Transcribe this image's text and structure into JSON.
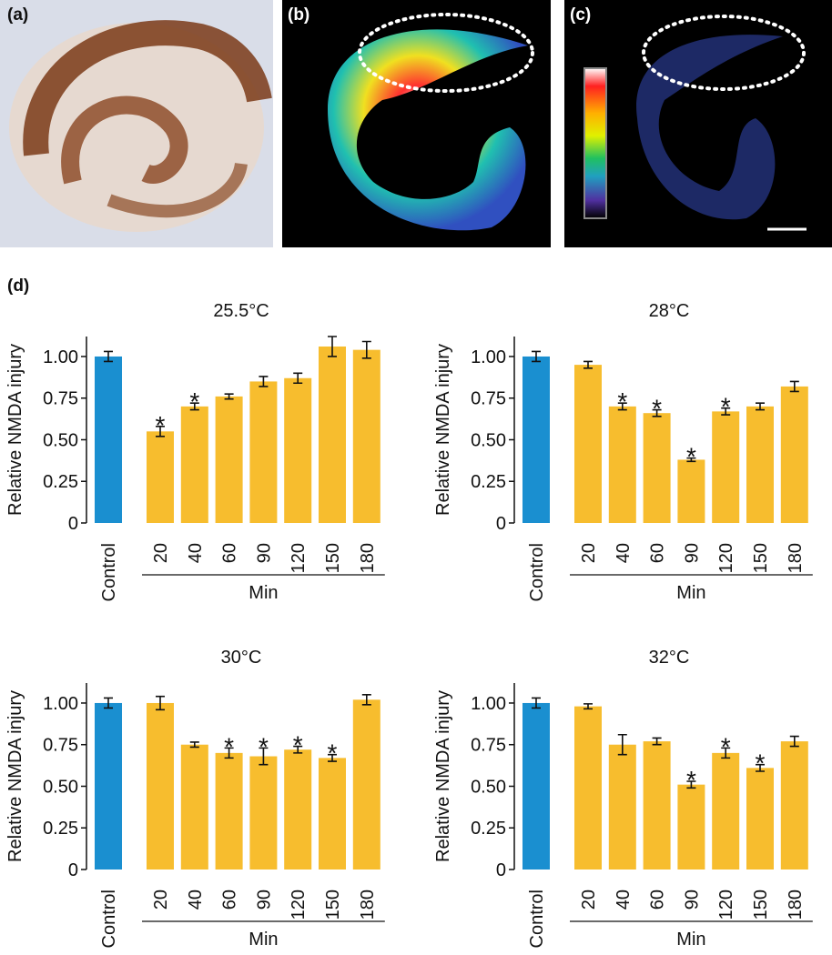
{
  "panel_labels": [
    "(a)",
    "(b)",
    "(c)",
    "(d)"
  ],
  "chart_data": [
    {
      "type": "bar",
      "title": "25.5°C",
      "ylabel": "Relative NMDA injury",
      "xlabel": "Min",
      "categories": [
        "Control",
        "20",
        "40",
        "60",
        "90",
        "120",
        "150",
        "180"
      ],
      "values": [
        1.0,
        0.55,
        0.7,
        0.76,
        0.85,
        0.87,
        1.06,
        1.04
      ],
      "errors": [
        0.03,
        0.03,
        0.02,
        0.015,
        0.03,
        0.03,
        0.06,
        0.05
      ],
      "markers": [
        null,
        "*",
        "*",
        null,
        null,
        null,
        null,
        null
      ],
      "colors": [
        "#1a8fd0",
        "#f7bd2e",
        "#f7bd2e",
        "#f7bd2e",
        "#f7bd2e",
        "#f7bd2e",
        "#f7bd2e",
        "#f7bd2e"
      ],
      "ylim": [
        0,
        1.12
      ],
      "yticks": [
        0,
        {
          "value": 0.25,
          "label": "0.25"
        },
        {
          "value": 0.5,
          "label": "0.50"
        },
        {
          "value": 0.75,
          "label": "0.75"
        },
        {
          "value": 1,
          "label": "1.00"
        }
      ]
    },
    {
      "type": "bar",
      "title": "28°C",
      "ylabel": "Relative NMDA injury",
      "xlabel": "Min",
      "categories": [
        "Control",
        "20",
        "40",
        "60",
        "90",
        "120",
        "150",
        "180"
      ],
      "values": [
        1.0,
        0.95,
        0.7,
        0.66,
        0.38,
        0.67,
        0.7,
        0.82
      ],
      "errors": [
        0.03,
        0.02,
        0.02,
        0.02,
        0.01,
        0.02,
        0.02,
        0.03
      ],
      "markers": [
        null,
        null,
        "*",
        "*",
        "*",
        "*",
        null,
        null
      ],
      "colors": [
        "#1a8fd0",
        "#f7bd2e",
        "#f7bd2e",
        "#f7bd2e",
        "#f7bd2e",
        "#f7bd2e",
        "#f7bd2e",
        "#f7bd2e"
      ],
      "ylim": [
        0,
        1.12
      ],
      "yticks": [
        0,
        {
          "value": 0.25,
          "label": "0.25"
        },
        {
          "value": 0.5,
          "label": "0.50"
        },
        {
          "value": 0.75,
          "label": "0.75"
        },
        {
          "value": 1,
          "label": "1.00"
        }
      ]
    },
    {
      "type": "bar",
      "title": "30°C",
      "ylabel": "Relative NMDA injury",
      "xlabel": "Min",
      "categories": [
        "Control",
        "20",
        "40",
        "60",
        "90",
        "120",
        "150",
        "180"
      ],
      "values": [
        1.0,
        1.0,
        0.75,
        0.7,
        0.68,
        0.72,
        0.67,
        1.02
      ],
      "errors": [
        0.03,
        0.04,
        0.015,
        0.03,
        0.05,
        0.02,
        0.02,
        0.03
      ],
      "markers": [
        null,
        null,
        null,
        "*",
        "*",
        "*",
        "*",
        null
      ],
      "colors": [
        "#1a8fd0",
        "#f7bd2e",
        "#f7bd2e",
        "#f7bd2e",
        "#f7bd2e",
        "#f7bd2e",
        "#f7bd2e",
        "#f7bd2e"
      ],
      "ylim": [
        0,
        1.12
      ],
      "yticks": [
        0,
        {
          "value": 0.25,
          "label": "0.25"
        },
        {
          "value": 0.5,
          "label": "0.50"
        },
        {
          "value": 0.75,
          "label": "0.75"
        },
        {
          "value": 1,
          "label": "1.00"
        }
      ]
    },
    {
      "type": "bar",
      "title": "32°C",
      "ylabel": "Relative NMDA injury",
      "xlabel": "Min",
      "categories": [
        "Control",
        "20",
        "40",
        "60",
        "90",
        "120",
        "150",
        "180"
      ],
      "values": [
        1.0,
        0.98,
        0.75,
        0.77,
        0.51,
        0.7,
        0.61,
        0.77
      ],
      "errors": [
        0.03,
        0.015,
        0.06,
        0.02,
        0.02,
        0.03,
        0.02,
        0.03
      ],
      "markers": [
        null,
        null,
        null,
        null,
        "*",
        "*",
        "*",
        null
      ],
      "colors": [
        "#1a8fd0",
        "#f7bd2e",
        "#f7bd2e",
        "#f7bd2e",
        "#f7bd2e",
        "#f7bd2e",
        "#f7bd2e",
        "#f7bd2e"
      ],
      "ylim": [
        0,
        1.12
      ],
      "yticks": [
        0,
        {
          "value": 0.25,
          "label": "0.25"
        },
        {
          "value": 0.5,
          "label": "0.50"
        },
        {
          "value": 0.75,
          "label": "0.75"
        },
        {
          "value": 1,
          "label": "1.00"
        }
      ]
    }
  ]
}
